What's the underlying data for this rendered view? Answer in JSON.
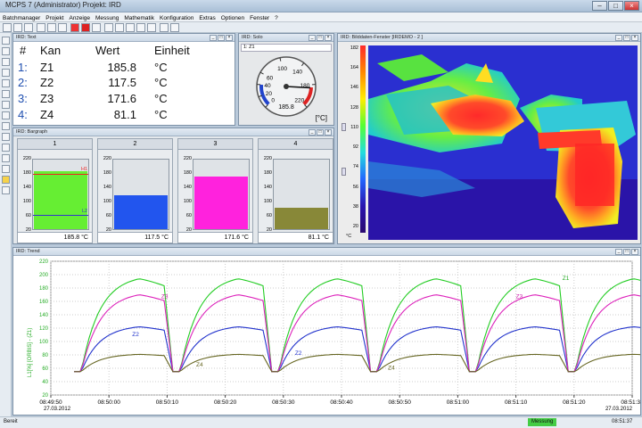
{
  "window": {
    "title": "MCPS 7   (Administrator)   Projekt: IRD"
  },
  "menu": [
    "Batchmanager",
    "Projekt",
    "Anzeige",
    "Messung",
    "Mathematik",
    "Konfiguration",
    "Extras",
    "Optionen",
    "Fenster",
    "?"
  ],
  "text_window": {
    "title": "IRD: Text",
    "headers": {
      "num": "#",
      "kan": "Kan",
      "wert": "Wert",
      "einheit": "Einheit"
    },
    "rows": [
      {
        "num": "1:",
        "kan": "Z1",
        "wert": "185.8",
        "unit": "°C"
      },
      {
        "num": "2:",
        "kan": "Z2",
        "wert": "117.5",
        "unit": "°C"
      },
      {
        "num": "3:",
        "kan": "Z3",
        "wert": "171.6",
        "unit": "°C"
      },
      {
        "num": "4:",
        "kan": "Z4",
        "wert": "81.1",
        "unit": "°C"
      }
    ]
  },
  "gauge_window": {
    "title": "IRD: Solo",
    "channel": "1: Z1",
    "ticks": [
      {
        "label": "0",
        "value": 0
      },
      {
        "label": "20",
        "value": 20
      },
      {
        "label": "40",
        "value": 40
      },
      {
        "label": "60",
        "value": 60
      },
      {
        "label": "100",
        "value": 100
      },
      {
        "label": "140",
        "value": 140
      },
      {
        "label": "180",
        "value": 180
      },
      {
        "label": "220",
        "value": 220
      }
    ],
    "value": 185.8,
    "value_label": "185.8",
    "unit": "[°C]"
  },
  "thermal_window": {
    "title": "IRD: Bilddaten-Fenster [IRDEMO - 2 ]",
    "scale_ticks": [
      "182",
      "164",
      "146",
      "128",
      "110",
      "92",
      "74",
      "56",
      "38",
      "20"
    ],
    "unit": "°C"
  },
  "bargraph_window": {
    "title": "IRD: Bargraph",
    "ticks": [
      "220",
      "180",
      "140",
      "100",
      "60",
      "20"
    ],
    "bars": [
      {
        "head": "1",
        "value": 185.8,
        "label": "185.8 °C",
        "color": "#66ee33",
        "h_label": "H1",
        "l_label": "L2"
      },
      {
        "head": "2",
        "value": 117.5,
        "label": "117.5 °C",
        "color": "#2255ee"
      },
      {
        "head": "3",
        "value": 171.6,
        "label": "171.6 °C",
        "color": "#ff22dd"
      },
      {
        "head": "4",
        "value": 81.1,
        "label": "81.1 °C",
        "color": "#888838"
      }
    ]
  },
  "trend_window": {
    "title": "IRD: Trend",
    "ylabel": "L1[%] [ORBIS] - (Z1)",
    "y_ticks": [
      "20",
      "40",
      "60",
      "80",
      "100",
      "120",
      "140",
      "160",
      "180",
      "200",
      "220"
    ],
    "x_ticks": [
      "08:49:50",
      "08:50:00",
      "08:50:10",
      "08:50:20",
      "08:50:30",
      "08:50:40",
      "08:50:50",
      "08:51:00",
      "08:51:10",
      "08:51:20",
      "08:51:30"
    ],
    "date_left": "27.03.2012",
    "date_right": "27.03.2012",
    "series_labels": {
      "z1": "Z1",
      "z2": "Z2",
      "z3": "Z3",
      "z4": "Z4"
    }
  },
  "chart_data": {
    "type": "line",
    "x_unit": "seconds after 08:49:50",
    "ylim": [
      20,
      220
    ],
    "series": [
      {
        "name": "Z1",
        "color": "#22cc22",
        "cycle_peak": 200,
        "cycle_base": 55
      },
      {
        "name": "Z2",
        "color": "#2233cc",
        "cycle_peak": 125,
        "cycle_base": 55
      },
      {
        "name": "Z3",
        "color": "#dd22bb",
        "cycle_peak": 175,
        "cycle_base": 55
      },
      {
        "name": "Z4",
        "color": "#666622",
        "cycle_peak": 82,
        "cycle_base": 55
      }
    ],
    "cycles": 6,
    "cycle_length_s": 17
  },
  "status": {
    "left": "Bereit",
    "mode": "Messung",
    "time": "08:51:37"
  }
}
